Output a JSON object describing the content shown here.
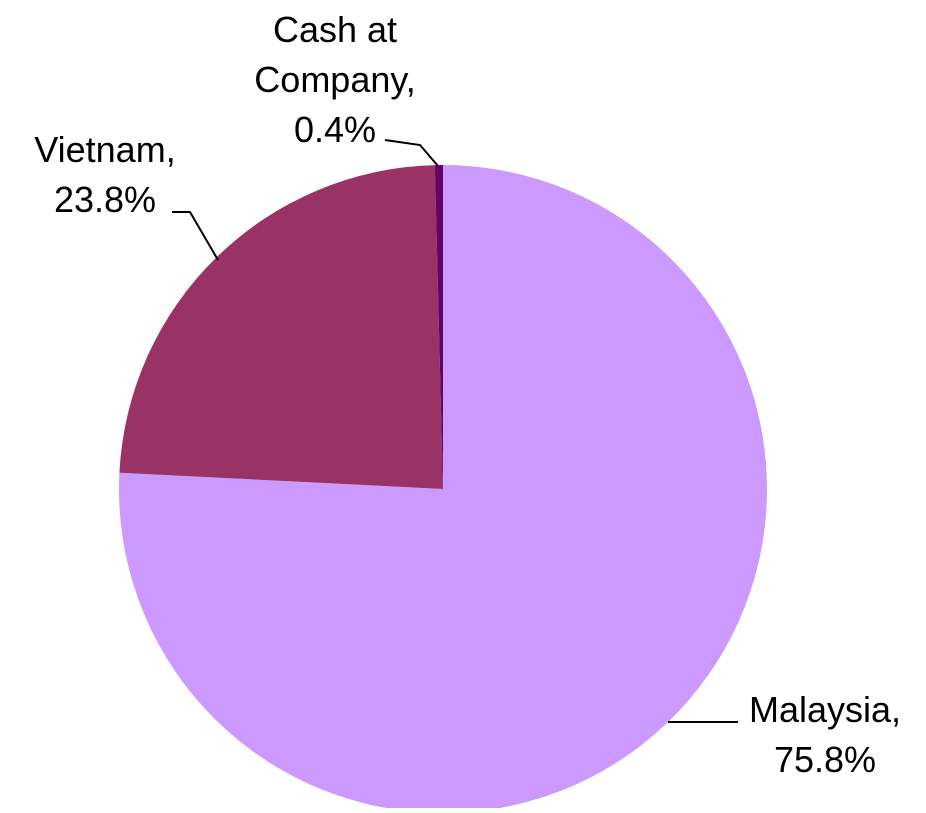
{
  "chart_data": {
    "type": "pie",
    "categories": [
      "Malaysia,",
      "Vietnam,",
      "Cash at Company,"
    ],
    "values": [
      75.8,
      23.8,
      0.4
    ],
    "value_labels": [
      "75.8%",
      "23.8%",
      "0.4%"
    ],
    "colors": [
      "#cc99ff",
      "#993366",
      "#660066"
    ],
    "start_angle": "top",
    "direction": "clockwise"
  }
}
